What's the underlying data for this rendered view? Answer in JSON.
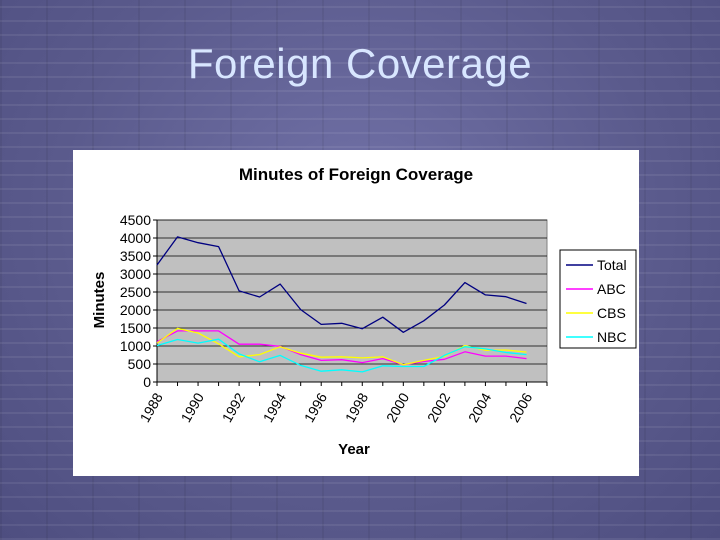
{
  "slide": {
    "title": "Foreign Coverage"
  },
  "chart_data": {
    "type": "line",
    "title": "Minutes of Foreign Coverage",
    "xlabel": "Year",
    "ylabel": "Minutes",
    "x": [
      1988,
      1989,
      1990,
      1991,
      1992,
      1993,
      1994,
      1995,
      1996,
      1997,
      1998,
      1999,
      2000,
      2001,
      2002,
      2003,
      2004,
      2005,
      2006,
      2007
    ],
    "x_tick_labels": [
      "1988",
      "1990",
      "1992",
      "1994",
      "1996",
      "1998",
      "2000",
      "2002",
      "2004",
      "2006"
    ],
    "y_ticks": [
      0,
      500,
      1000,
      1500,
      2000,
      2500,
      3000,
      3500,
      4000,
      4500
    ],
    "ylim": [
      0,
      4500
    ],
    "grid": true,
    "legend_position": "right",
    "background_color": "#c0c0c0",
    "series": [
      {
        "name": "Total",
        "color": "#000080",
        "values": [
          3250,
          4030,
          3870,
          3760,
          2530,
          2360,
          2720,
          2010,
          1600,
          1630,
          1480,
          1800,
          1380,
          1700,
          2140,
          2760,
          2420,
          2370,
          2180,
          null
        ]
      },
      {
        "name": "ABC",
        "color": "#ff00ff",
        "values": [
          1120,
          1420,
          1420,
          1420,
          1050,
          1050,
          990,
          760,
          600,
          620,
          540,
          650,
          480,
          570,
          630,
          840,
          720,
          720,
          650,
          null
        ]
      },
      {
        "name": "CBS",
        "color": "#ffff00",
        "values": [
          1080,
          1490,
          1360,
          1060,
          700,
          760,
          980,
          800,
          690,
          700,
          670,
          700,
          480,
          600,
          710,
          1010,
          880,
          890,
          830,
          null
        ]
      },
      {
        "name": "NBC",
        "color": "#00ffff",
        "values": [
          1010,
          1180,
          1080,
          1190,
          780,
          560,
          740,
          460,
          300,
          340,
          280,
          450,
          430,
          430,
          740,
          980,
          920,
          820,
          760,
          null
        ]
      }
    ]
  }
}
